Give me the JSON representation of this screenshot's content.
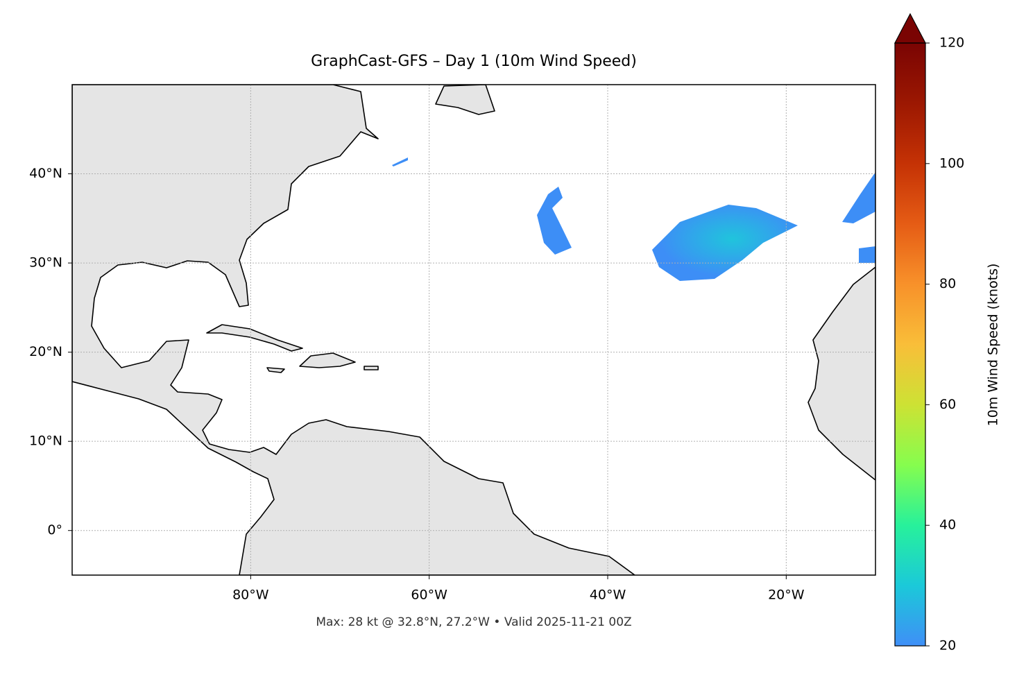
{
  "chart_data": {
    "type": "map",
    "title": "GraphCast-GFS – Day 1 (10m Wind Speed)",
    "xlim": [
      -100,
      -10
    ],
    "ylim": [
      -5,
      50
    ],
    "xticks": [
      {
        "value": -80,
        "label": "80°W"
      },
      {
        "value": -60,
        "label": "60°W"
      },
      {
        "value": -40,
        "label": "40°W"
      },
      {
        "value": -20,
        "label": "20°W"
      }
    ],
    "yticks": [
      {
        "value": 0,
        "label": "0°"
      },
      {
        "value": 10,
        "label": "10°N"
      },
      {
        "value": 20,
        "label": "20°N"
      },
      {
        "value": 30,
        "label": "30°N"
      },
      {
        "value": 40,
        "label": "40°N"
      }
    ],
    "grid": true,
    "colorbar": {
      "label": "10m Wind Speed (knots)",
      "lim": [
        20,
        120
      ],
      "ticks": [
        20,
        40,
        60,
        80,
        100,
        120
      ],
      "colormap": [
        "#3f8ff7",
        "#1bc9d9",
        "#27f19b",
        "#86fd4e",
        "#cde234",
        "#f9be39",
        "#f8912a",
        "#e55c15",
        "#c53205",
        "#9c1802",
        "#7a0403"
      ],
      "extend": "max"
    },
    "footnote": "Max: 28 kt @ 32.8°N, 27.2°W • Valid 2025-11-21 00Z"
  }
}
